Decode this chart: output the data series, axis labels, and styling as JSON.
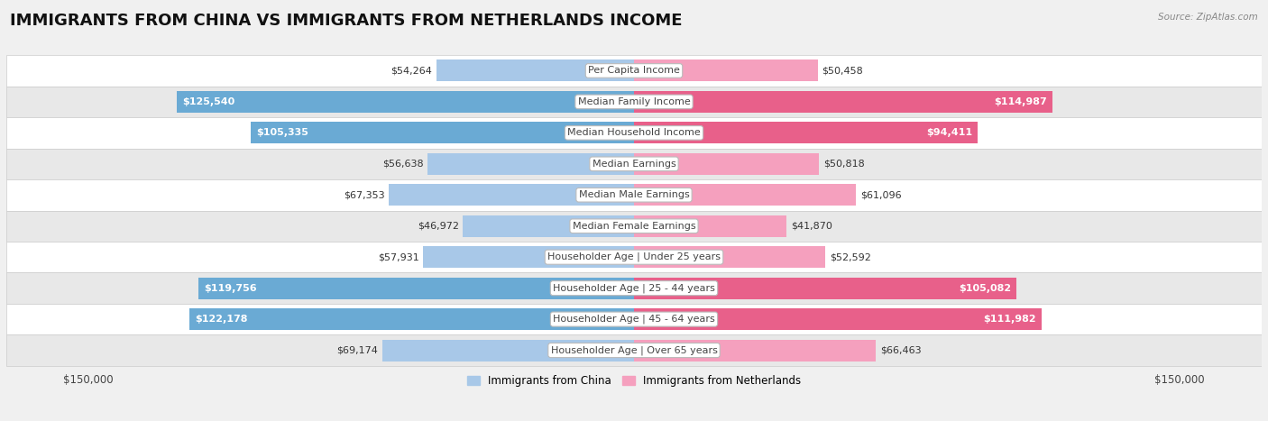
{
  "title": "IMMIGRANTS FROM CHINA VS IMMIGRANTS FROM NETHERLANDS INCOME",
  "source": "Source: ZipAtlas.com",
  "categories": [
    "Per Capita Income",
    "Median Family Income",
    "Median Household Income",
    "Median Earnings",
    "Median Male Earnings",
    "Median Female Earnings",
    "Householder Age | Under 25 years",
    "Householder Age | 25 - 44 years",
    "Householder Age | 45 - 64 years",
    "Householder Age | Over 65 years"
  ],
  "china_values": [
    54264,
    125540,
    105335,
    56638,
    67353,
    46972,
    57931,
    119756,
    122178,
    69174
  ],
  "netherlands_values": [
    50458,
    114987,
    94411,
    50818,
    61096,
    41870,
    52592,
    105082,
    111982,
    66463
  ],
  "china_labels": [
    "$54,264",
    "$125,540",
    "$105,335",
    "$56,638",
    "$67,353",
    "$46,972",
    "$57,931",
    "$119,756",
    "$122,178",
    "$69,174"
  ],
  "netherlands_labels": [
    "$50,458",
    "$114,987",
    "$94,411",
    "$50,818",
    "$61,096",
    "$41,870",
    "$52,592",
    "$105,082",
    "$111,982",
    "$66,463"
  ],
  "china_color_light": "#a8c8e8",
  "china_color_dark": "#6aaad4",
  "netherlands_color_light": "#f5a0be",
  "netherlands_color_dark": "#e8608a",
  "max_value": 150000,
  "legend_china": "Immigrants from China",
  "legend_netherlands": "Immigrants from Netherlands",
  "background_color": "#f0f0f0",
  "row_colors": [
    "#ffffff",
    "#e8e8e8"
  ],
  "title_fontsize": 13,
  "label_fontsize": 8,
  "category_fontsize": 8,
  "large_threshold": 90000
}
